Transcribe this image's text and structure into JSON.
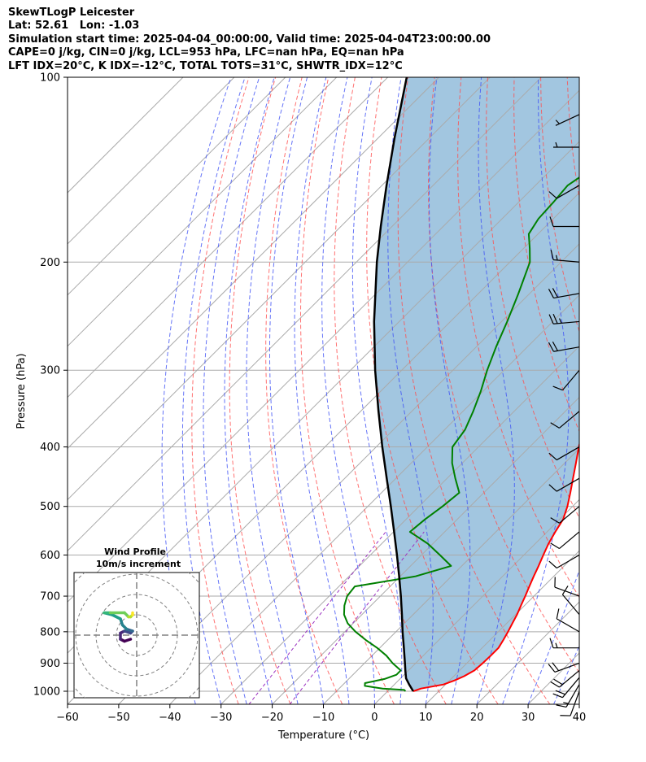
{
  "header": {
    "line1": "SkewTLogP Leicester",
    "line2": "Lat: 52.61   Lon: -1.03",
    "line3": "Simulation start time: 2025-04-04_00:00:00, Valid time: 2025-04-04T23:00:00.00",
    "line4": "CAPE=0 j/kg, CIN=0 j/kg, LCL=953 hPa, LFC=nan hPa, EQ=nan hPa",
    "line5": "LFT IDX=20°C, K IDX=-12°C, TOTAL TOTS=31°C, SHWTR_IDX=12°C"
  },
  "chart_data": {
    "type": "skew-t log-p",
    "xlabel": "Temperature (°C)",
    "ylabel": "Pressure (hPa)",
    "xlim": [
      -60,
      40
    ],
    "ylim": [
      1050,
      100
    ],
    "x_ticks": [
      -60,
      -50,
      -40,
      -30,
      -20,
      -10,
      0,
      10,
      20,
      30,
      40
    ],
    "y_ticks": [
      1000,
      900,
      800,
      700,
      600,
      500,
      400,
      300,
      200,
      100
    ],
    "grid": true,
    "colors": {
      "temperature": "#ff0000",
      "dewpoint": "#008000",
      "parcel": "#000000",
      "cin_shade": "#a2c6e0",
      "dry_adiabat": "#ff4d4d",
      "moist_adiabat": "#3f51f5",
      "mixing_ratio": "#9b30c0",
      "isotherm": "#aaaaaa"
    },
    "temperature": [
      {
        "p": 1000,
        "t": 5.0
      },
      {
        "p": 990,
        "t": 6.0
      },
      {
        "p": 975,
        "t": 9.6
      },
      {
        "p": 960,
        "t": 11.0
      },
      {
        "p": 945,
        "t": 12.0
      },
      {
        "p": 925,
        "t": 12.9
      },
      {
        "p": 900,
        "t": 13.1
      },
      {
        "p": 875,
        "t": 13.2
      },
      {
        "p": 850,
        "t": 13.2
      },
      {
        "p": 825,
        "t": 12.6
      },
      {
        "p": 800,
        "t": 11.9
      },
      {
        "p": 775,
        "t": 11.1
      },
      {
        "p": 750,
        "t": 10.3
      },
      {
        "p": 725,
        "t": 9.3
      },
      {
        "p": 700,
        "t": 8.3
      },
      {
        "p": 675,
        "t": 7.2
      },
      {
        "p": 650,
        "t": 6.1
      },
      {
        "p": 625,
        "t": 5.0
      },
      {
        "p": 600,
        "t": 3.8
      },
      {
        "p": 575,
        "t": 2.6
      },
      {
        "p": 550,
        "t": 1.6
      },
      {
        "p": 525,
        "t": 0.7
      },
      {
        "p": 500,
        "t": -1.0
      },
      {
        "p": 475,
        "t": -3.1
      },
      {
        "p": 450,
        "t": -5.4
      },
      {
        "p": 425,
        "t": -7.8
      },
      {
        "p": 400,
        "t": -10.4
      },
      {
        "p": 375,
        "t": -12.9
      },
      {
        "p": 350,
        "t": -15.8
      },
      {
        "p": 325,
        "t": -19.0
      },
      {
        "p": 300,
        "t": -22.5
      },
      {
        "p": 275,
        "t": -26.6
      },
      {
        "p": 250,
        "t": -31.4
      },
      {
        "p": 225,
        "t": -36.7
      },
      {
        "p": 200,
        "t": -43.0
      },
      {
        "p": 185,
        "t": -44.8
      },
      {
        "p": 175,
        "t": -45.1
      },
      {
        "p": 160,
        "t": -44.9
      },
      {
        "p": 150,
        "t": -45.1
      },
      {
        "p": 140,
        "t": -44.9
      },
      {
        "p": 130,
        "t": -45.1
      },
      {
        "p": 120,
        "t": -44.8
      },
      {
        "p": 110,
        "t": -45.5
      },
      {
        "p": 100,
        "t": -47.0
      }
    ],
    "dewpoint": [
      {
        "p": 1000,
        "t": 3.5
      },
      {
        "p": 995,
        "t": 3.0
      },
      {
        "p": 990,
        "t": -1.5
      },
      {
        "p": 980,
        "t": -5.5
      },
      {
        "p": 970,
        "t": -6.0
      },
      {
        "p": 955,
        "t": -3.0
      },
      {
        "p": 940,
        "t": -1.5
      },
      {
        "p": 925,
        "t": -1.5
      },
      {
        "p": 900,
        "t": -4.5
      },
      {
        "p": 875,
        "t": -7.2
      },
      {
        "p": 850,
        "t": -10.5
      },
      {
        "p": 825,
        "t": -14.3
      },
      {
        "p": 800,
        "t": -17.9
      },
      {
        "p": 775,
        "t": -21.1
      },
      {
        "p": 750,
        "t": -23.5
      },
      {
        "p": 725,
        "t": -25.2
      },
      {
        "p": 700,
        "t": -26.5
      },
      {
        "p": 675,
        "t": -26.9
      },
      {
        "p": 650,
        "t": -17.0
      },
      {
        "p": 625,
        "t": -12.1
      },
      {
        "p": 600,
        "t": -16.4
      },
      {
        "p": 575,
        "t": -21.0
      },
      {
        "p": 550,
        "t": -26.8
      },
      {
        "p": 525,
        "t": -26.3
      },
      {
        "p": 500,
        "t": -25.4
      },
      {
        "p": 475,
        "t": -24.8
      },
      {
        "p": 450,
        "t": -28.4
      },
      {
        "p": 425,
        "t": -32.0
      },
      {
        "p": 400,
        "t": -35.1
      },
      {
        "p": 375,
        "t": -36.0
      },
      {
        "p": 350,
        "t": -38.0
      },
      {
        "p": 325,
        "t": -40.4
      },
      {
        "p": 300,
        "t": -43.3
      },
      {
        "p": 275,
        "t": -46.1
      },
      {
        "p": 250,
        "t": -48.9
      },
      {
        "p": 225,
        "t": -52.2
      },
      {
        "p": 200,
        "t": -56.1
      },
      {
        "p": 190,
        "t": -58.8
      },
      {
        "p": 180,
        "t": -61.8
      },
      {
        "p": 170,
        "t": -62.9
      },
      {
        "p": 160,
        "t": -63.2
      },
      {
        "p": 150,
        "t": -63.7
      },
      {
        "p": 140,
        "t": -62.0
      },
      {
        "p": 130,
        "t": -59.5
      },
      {
        "p": 120,
        "t": -57.0
      },
      {
        "p": 110,
        "t": -54.0
      },
      {
        "p": 100,
        "t": -50.6
      }
    ],
    "parcel": [
      {
        "p": 1000,
        "t": 5.0
      },
      {
        "p": 975,
        "t": 2.9
      },
      {
        "p": 953,
        "t": 1.1
      },
      {
        "p": 925,
        "t": -0.6
      },
      {
        "p": 900,
        "t": -2.1
      },
      {
        "p": 850,
        "t": -5.3
      },
      {
        "p": 800,
        "t": -8.7
      },
      {
        "p": 750,
        "t": -12.2
      },
      {
        "p": 700,
        "t": -16.0
      },
      {
        "p": 650,
        "t": -20.2
      },
      {
        "p": 600,
        "t": -24.8
      },
      {
        "p": 550,
        "t": -29.9
      },
      {
        "p": 500,
        "t": -35.5
      },
      {
        "p": 450,
        "t": -41.8
      },
      {
        "p": 400,
        "t": -48.8
      },
      {
        "p": 350,
        "t": -56.5
      },
      {
        "p": 300,
        "t": -65.2
      },
      {
        "p": 250,
        "t": -74.9
      },
      {
        "p": 200,
        "t": -86.0
      },
      {
        "p": 175,
        "t": -92.2
      },
      {
        "p": 150,
        "t": -99.1
      },
      {
        "p": 125,
        "t": -107.0
      },
      {
        "p": 100,
        "t": -116.3
      }
    ],
    "wind_barbs": [
      {
        "p": 1000,
        "speed_kt": 10,
        "dir": 200
      },
      {
        "p": 975,
        "speed_kt": 15,
        "dir": 210
      },
      {
        "p": 950,
        "speed_kt": 20,
        "dir": 220
      },
      {
        "p": 925,
        "speed_kt": 20,
        "dir": 230
      },
      {
        "p": 900,
        "speed_kt": 20,
        "dir": 250
      },
      {
        "p": 850,
        "speed_kt": 15,
        "dir": 270
      },
      {
        "p": 800,
        "speed_kt": 10,
        "dir": 300
      },
      {
        "p": 750,
        "speed_kt": 10,
        "dir": 320
      },
      {
        "p": 700,
        "speed_kt": 10,
        "dir": 290
      },
      {
        "p": 600,
        "speed_kt": 10,
        "dir": 240
      },
      {
        "p": 550,
        "speed_kt": 10,
        "dir": 230
      },
      {
        "p": 500,
        "speed_kt": 10,
        "dir": 230
      },
      {
        "p": 450,
        "speed_kt": 10,
        "dir": 240
      },
      {
        "p": 400,
        "speed_kt": 10,
        "dir": 240
      },
      {
        "p": 350,
        "speed_kt": 10,
        "dir": 230
      },
      {
        "p": 300,
        "speed_kt": 10,
        "dir": 220
      },
      {
        "p": 275,
        "speed_kt": 20,
        "dir": 260
      },
      {
        "p": 250,
        "speed_kt": 25,
        "dir": 265
      },
      {
        "p": 225,
        "speed_kt": 20,
        "dir": 260
      },
      {
        "p": 200,
        "speed_kt": 15,
        "dir": 275
      },
      {
        "p": 175,
        "speed_kt": 10,
        "dir": 270
      },
      {
        "p": 150,
        "speed_kt": 10,
        "dir": 240
      },
      {
        "p": 130,
        "speed_kt": 5,
        "dir": 270
      },
      {
        "p": 115,
        "speed_kt": 5,
        "dir": 245
      }
    ],
    "hodograph": {
      "title": "Wind Profile",
      "subtitle": "10m/s increment",
      "rings_ms": [
        10,
        20,
        30,
        40
      ],
      "points_ms": [
        {
          "u": -3,
          "v": -2
        },
        {
          "u": -6,
          "v": -3
        },
        {
          "u": -8,
          "v": -2
        },
        {
          "u": -8,
          "v": 1
        },
        {
          "u": -6,
          "v": 2
        },
        {
          "u": -3,
          "v": 1
        },
        {
          "u": -2,
          "v": 2
        },
        {
          "u": -5,
          "v": 3
        },
        {
          "u": -7,
          "v": 5
        },
        {
          "u": -8,
          "v": 8
        },
        {
          "u": -12,
          "v": 10
        },
        {
          "u": -16,
          "v": 11
        },
        {
          "u": -13,
          "v": 11
        },
        {
          "u": -6,
          "v": 11
        },
        {
          "u": -4,
          "v": 9
        },
        {
          "u": -3,
          "v": 9
        },
        {
          "u": -2,
          "v": 10
        },
        {
          "u": -2,
          "v": 11
        }
      ]
    }
  }
}
